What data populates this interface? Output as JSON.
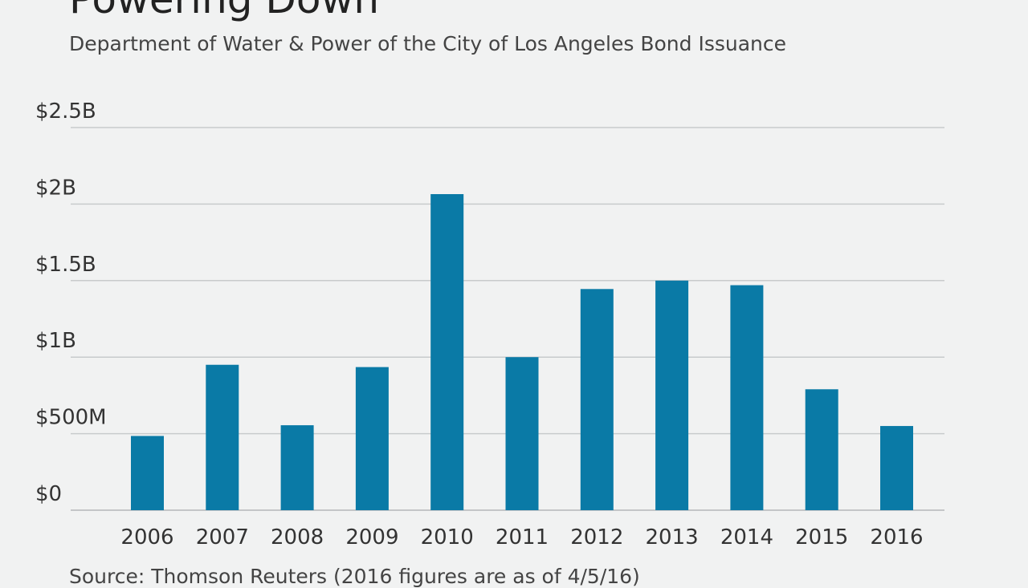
{
  "title": "Powering Down",
  "subtitle": "Department of Water & Power of the City of Los Angeles Bond Issuance",
  "source": "Source: Thomson Reuters (2016 figures are as of 4/5/16)",
  "colors": {
    "bar": "#0a7aa6",
    "background": "#f1f2f2"
  },
  "chart_data": {
    "type": "bar",
    "title": "Powering Down",
    "subtitle": "Department of Water & Power of the City of Los Angeles Bond Issuance",
    "xlabel": "",
    "ylabel": "",
    "ylim": [
      0,
      2500000000
    ],
    "grid": true,
    "yticks": [
      {
        "value": 0,
        "label": "$0"
      },
      {
        "value": 500000000,
        "label": "$500M"
      },
      {
        "value": 1000000000,
        "label": "$1B"
      },
      {
        "value": 1500000000,
        "label": "$1.5B"
      },
      {
        "value": 2000000000,
        "label": "$2B"
      },
      {
        "value": 2500000000,
        "label": "$2.5B"
      }
    ],
    "categories": [
      "2006",
      "2007",
      "2008",
      "2009",
      "2010",
      "2011",
      "2012",
      "2013",
      "2014",
      "2015",
      "2016"
    ],
    "values": [
      485000000,
      950000000,
      555000000,
      935000000,
      2065000000,
      1000000000,
      1445000000,
      1500000000,
      1470000000,
      790000000,
      550000000
    ]
  }
}
